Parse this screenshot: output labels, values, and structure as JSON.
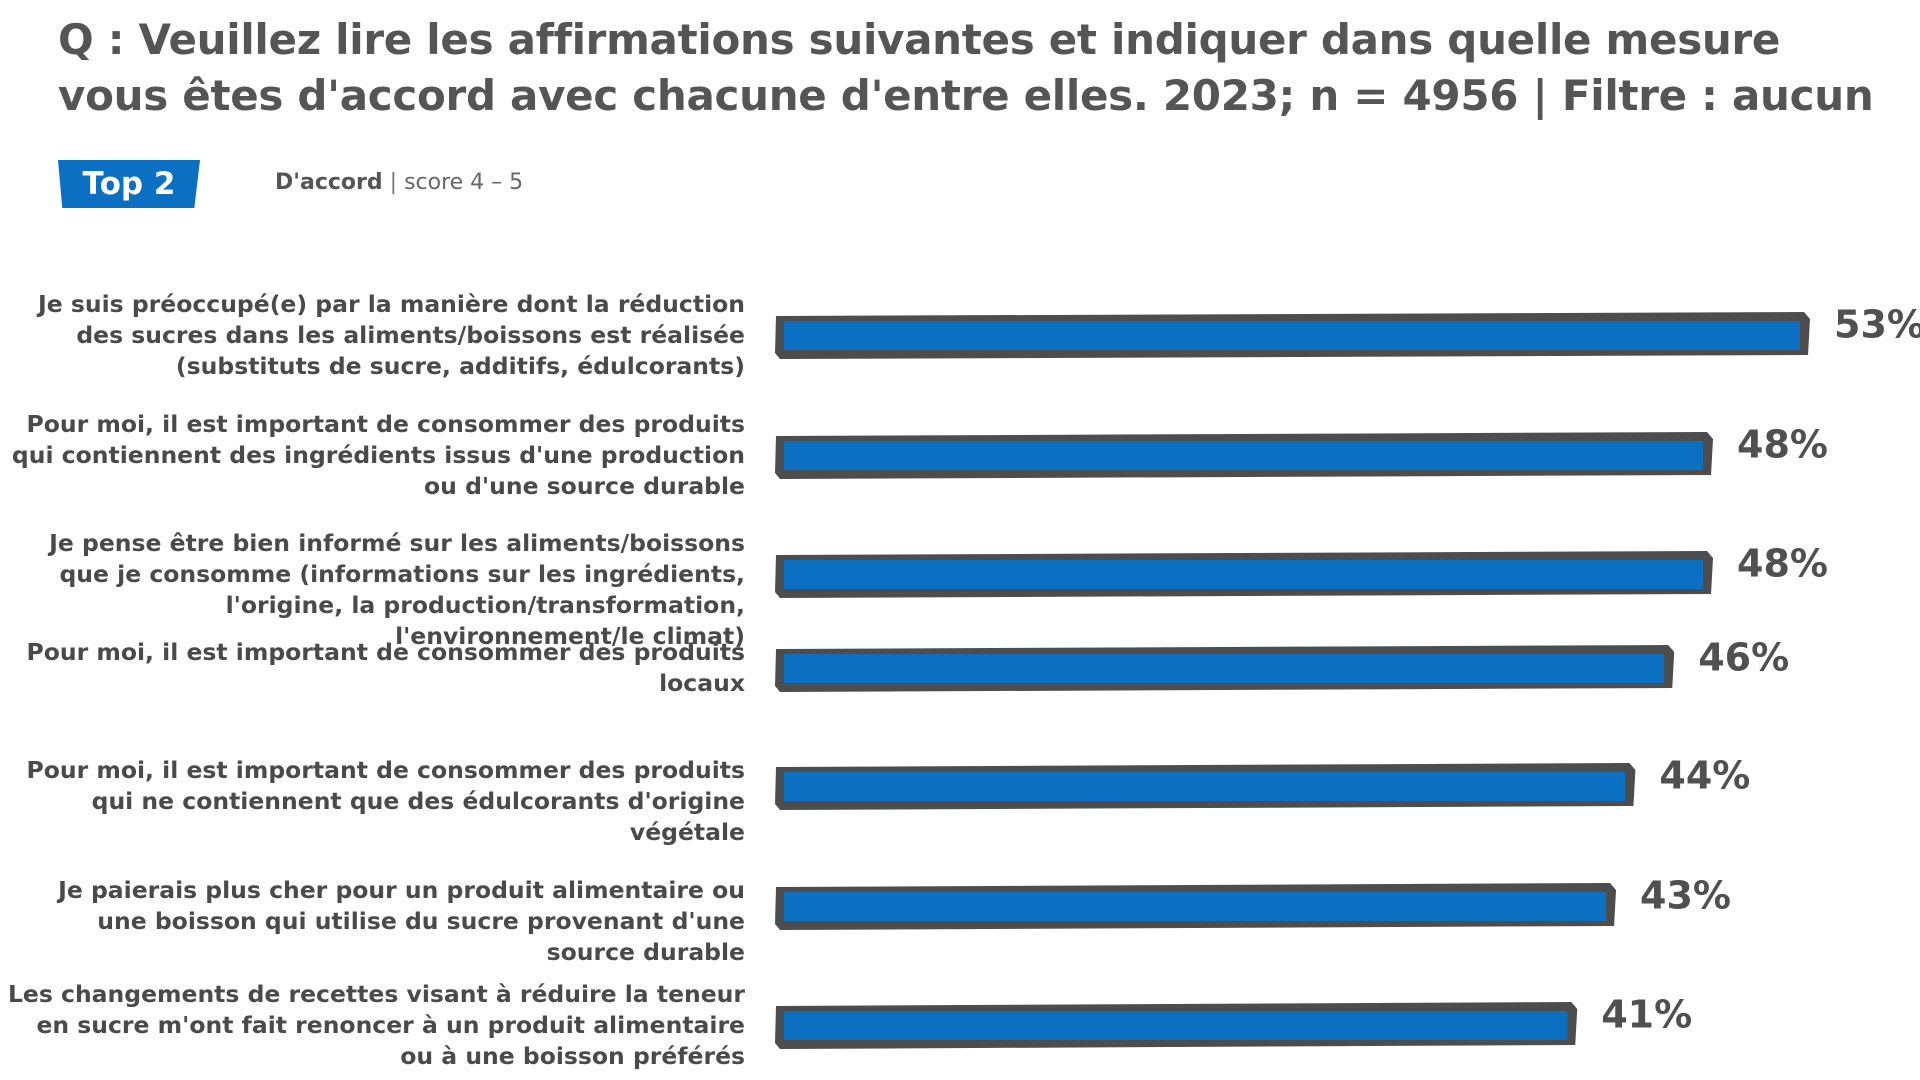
{
  "title": "Q : Veuillez lire les affirmations suivantes et indiquer dans quelle mesure vous êtes d'accord avec chacune d'entre elles. 2023; n = 4956 | Filtre : aucun",
  "badge": "Top 2",
  "legend": {
    "strong": "D'accord",
    "separator": "|",
    "light": "score 4 – 5"
  },
  "colors": {
    "bar_fill": "#0b6fc2",
    "bar_outline": "#4d4d4d",
    "text": "#4a4a4a"
  },
  "chart_data": {
    "type": "bar",
    "orientation": "horizontal",
    "xlim": [
      0,
      53
    ],
    "grid": false,
    "categories": [
      "Je suis préoccupé(e) par la manière dont la réduction des sucres dans les aliments/boissons est réalisée (substituts de sucre, additifs, édulcorants)",
      "Pour moi, il est important de consommer des produits qui contiennent des ingrédients issus d'une production ou d'une source durable",
      "Je pense être bien informé sur les aliments/boissons que je consomme (informations sur les ingrédients, l'origine, la production/transformation, l'environnement/le climat)",
      "Pour moi, il est important de consommer des produits locaux",
      "Pour moi, il est important de consommer des produits qui ne contiennent que des édulcorants d'origine végétale",
      "Je paierais plus cher pour un produit alimentaire ou une boisson qui utilise du sucre provenant d'une source durable",
      "Les changements de recettes visant à réduire la teneur en sucre m'ont fait renoncer à un produit alimentaire ou à une boisson préférés"
    ],
    "values": [
      53,
      48,
      48,
      46,
      44,
      43,
      41
    ],
    "value_labels": [
      "53%",
      "48%",
      "48%",
      "46%",
      "44%",
      "43%",
      "41%"
    ]
  }
}
